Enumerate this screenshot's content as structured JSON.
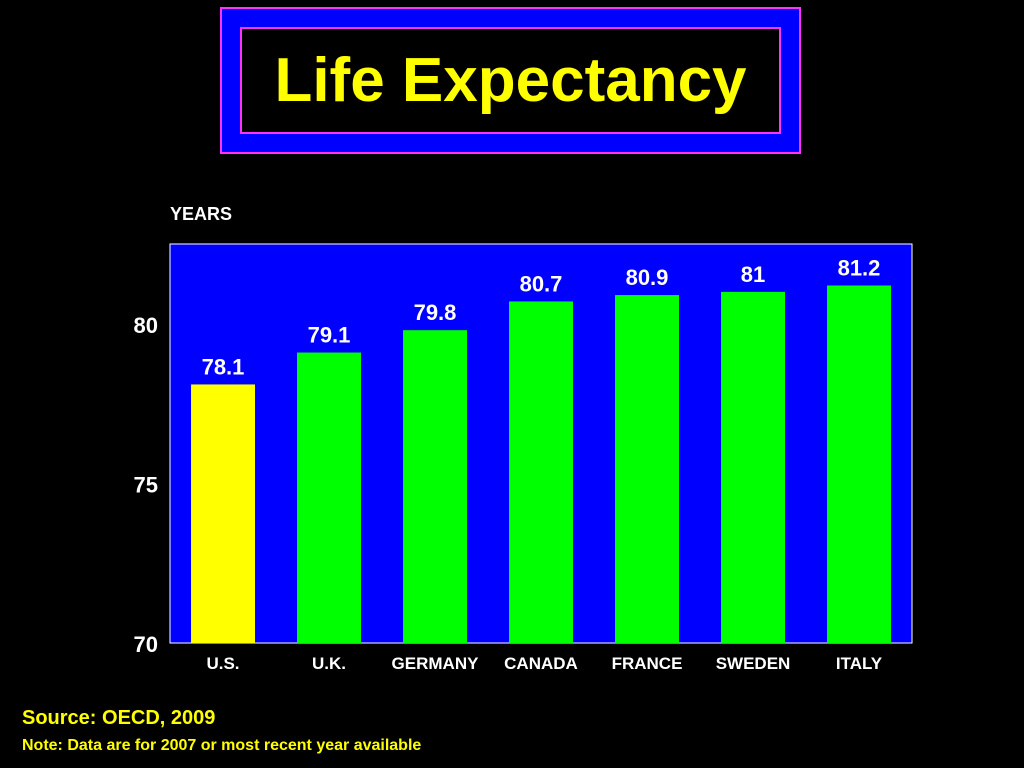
{
  "chart_data": {
    "type": "bar",
    "title": "Life Expectancy",
    "ylabel": "YEARS",
    "xlabel": "",
    "categories": [
      "U.S.",
      "U.K.",
      "GERMANY",
      "CANADA",
      "FRANCE",
      "SWEDEN",
      "ITALY"
    ],
    "values": [
      78.1,
      79.1,
      79.8,
      80.7,
      80.9,
      81,
      81.2
    ],
    "value_labels": [
      "78.1",
      "79.1",
      "79.8",
      "80.7",
      "80.9",
      "81",
      "81.2"
    ],
    "ylim": [
      70,
      82.5
    ],
    "yticks": [
      70,
      75,
      80
    ],
    "grid": false,
    "legend": "none",
    "colors": {
      "plot_background": "#0000ff",
      "highlight_bar": "#ffff00",
      "bar": "#00ff00",
      "title_text": "#ffff00",
      "title_frame": "#0000ff",
      "title_border": "#ff33ff"
    },
    "highlight_index": 0
  },
  "source": "Source: OECD, 2009",
  "note": "Note: Data are for 2007 or most recent year available"
}
